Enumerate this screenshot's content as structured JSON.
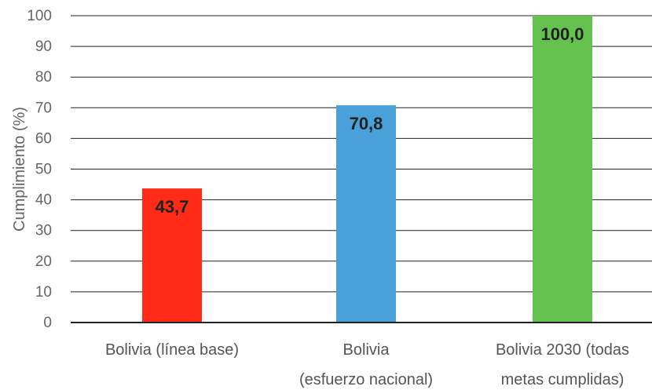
{
  "chart_data": {
    "type": "bar",
    "categories": [
      [
        "Bolivia (línea base)"
      ],
      [
        "Bolivia",
        "(esfuerzo nacional)"
      ],
      [
        "Bolivia 2030 (todas",
        "metas cumplidas)"
      ]
    ],
    "values": [
      43.7,
      70.8,
      100.0
    ],
    "value_labels": [
      "43,7",
      "70,8",
      "100,0"
    ],
    "colors": [
      "#ff2b17",
      "#4aa0d8",
      "#65c24e"
    ],
    "ylabel": "Cumplimiento (%)",
    "ylim": [
      0,
      100
    ],
    "yticks": [
      0,
      10,
      20,
      30,
      40,
      50,
      60,
      70,
      80,
      90,
      100
    ],
    "grid": true,
    "legend": "none"
  }
}
